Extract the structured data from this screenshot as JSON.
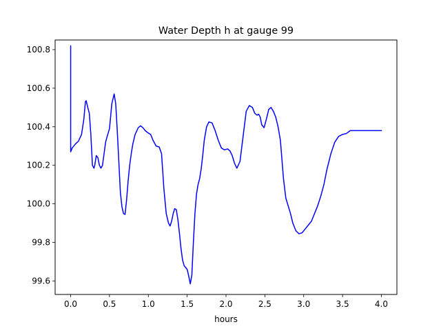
{
  "chart_data": {
    "type": "line",
    "title": "Water Depth h at gauge 99",
    "xlabel": "hours",
    "ylabel": "",
    "xlim": [
      -0.2,
      4.2
    ],
    "ylim": [
      99.53,
      100.85
    ],
    "xticks": [
      0.0,
      0.5,
      1.0,
      1.5,
      2.0,
      2.5,
      3.0,
      3.5,
      4.0
    ],
    "xtick_labels": [
      "0.0",
      "0.5",
      "1.0",
      "1.5",
      "2.0",
      "2.5",
      "3.0",
      "3.5",
      "4.0"
    ],
    "yticks": [
      99.6,
      99.8,
      100.0,
      100.2,
      100.4,
      100.6,
      100.8
    ],
    "ytick_labels": [
      "99.6",
      "99.8",
      "100.0",
      "100.2",
      "100.4",
      "100.6",
      "100.8"
    ],
    "grid": false,
    "legend": false,
    "series": [
      {
        "color": "#0000ff",
        "x": [
          0,
          0,
          0.0001,
          0.02,
          0.06,
          0.1,
          0.14,
          0.17,
          0.19,
          0.2,
          0.22,
          0.24,
          0.26,
          0.28,
          0.3,
          0.31,
          0.33,
          0.35,
          0.37,
          0.39,
          0.41,
          0.43,
          0.45,
          0.47,
          0.5,
          0.53,
          0.56,
          0.58,
          0.6,
          0.62,
          0.64,
          0.66,
          0.68,
          0.7,
          0.72,
          0.74,
          0.76,
          0.78,
          0.8,
          0.83,
          0.87,
          0.9,
          0.93,
          0.96,
          0.99,
          1.03,
          1.06,
          1.1,
          1.14,
          1.17,
          1.2,
          1.23,
          1.26,
          1.28,
          1.3,
          1.32,
          1.34,
          1.36,
          1.38,
          1.4,
          1.42,
          1.44,
          1.46,
          1.48,
          1.5,
          1.52,
          1.54,
          1.56,
          1.58,
          1.6,
          1.62,
          1.64,
          1.66,
          1.68,
          1.7,
          1.72,
          1.75,
          1.78,
          1.82,
          1.86,
          1.9,
          1.94,
          1.98,
          2.02,
          2.05,
          2.08,
          2.11,
          2.14,
          2.18,
          2.22,
          2.26,
          2.3,
          2.34,
          2.37,
          2.4,
          2.42,
          2.44,
          2.46,
          2.49,
          2.52,
          2.55,
          2.58,
          2.61,
          2.64,
          2.67,
          2.7,
          2.72,
          2.74,
          2.77,
          2.8,
          2.83,
          2.86,
          2.9,
          2.94,
          2.98,
          3.02,
          3.06,
          3.1,
          3.14,
          3.18,
          3.22,
          3.26,
          3.3,
          3.35,
          3.4,
          3.45,
          3.5,
          3.55,
          3.6,
          3.65,
          3.7,
          3.75,
          3.8,
          3.85,
          3.9,
          3.95,
          4.0
        ],
        "y": [
          100.27,
          100.82,
          100.27,
          100.29,
          100.31,
          100.325,
          100.36,
          100.44,
          100.53,
          100.535,
          100.5,
          100.47,
          100.36,
          100.2,
          100.185,
          100.2,
          100.25,
          100.24,
          100.2,
          100.185,
          100.2,
          100.26,
          100.32,
          100.35,
          100.39,
          100.52,
          100.57,
          100.52,
          100.38,
          100.22,
          100.06,
          99.985,
          99.95,
          99.945,
          100.02,
          100.12,
          100.2,
          100.26,
          100.31,
          100.36,
          100.395,
          100.405,
          100.395,
          100.38,
          100.37,
          100.36,
          100.33,
          100.3,
          100.295,
          100.26,
          100.08,
          99.95,
          99.9,
          99.885,
          99.91,
          99.95,
          99.975,
          99.97,
          99.92,
          99.85,
          99.77,
          99.71,
          99.68,
          99.67,
          99.66,
          99.625,
          99.585,
          99.63,
          99.8,
          99.95,
          100.05,
          100.1,
          100.13,
          100.18,
          100.25,
          100.33,
          100.4,
          100.425,
          100.42,
          100.38,
          100.33,
          100.29,
          100.28,
          100.285,
          100.275,
          100.25,
          100.21,
          100.185,
          100.22,
          100.35,
          100.48,
          100.51,
          100.5,
          100.47,
          100.46,
          100.465,
          100.45,
          100.41,
          100.395,
          100.44,
          100.49,
          100.5,
          100.48,
          100.45,
          100.4,
          100.33,
          100.23,
          100.13,
          100.03,
          99.99,
          99.95,
          99.9,
          99.86,
          99.845,
          99.85,
          99.87,
          99.89,
          99.91,
          99.95,
          99.99,
          100.04,
          100.1,
          100.18,
          100.26,
          100.32,
          100.35,
          100.36,
          100.365,
          100.38,
          100.38,
          100.38,
          100.38,
          100.38,
          100.38,
          100.38,
          100.38,
          100.38
        ]
      }
    ]
  }
}
